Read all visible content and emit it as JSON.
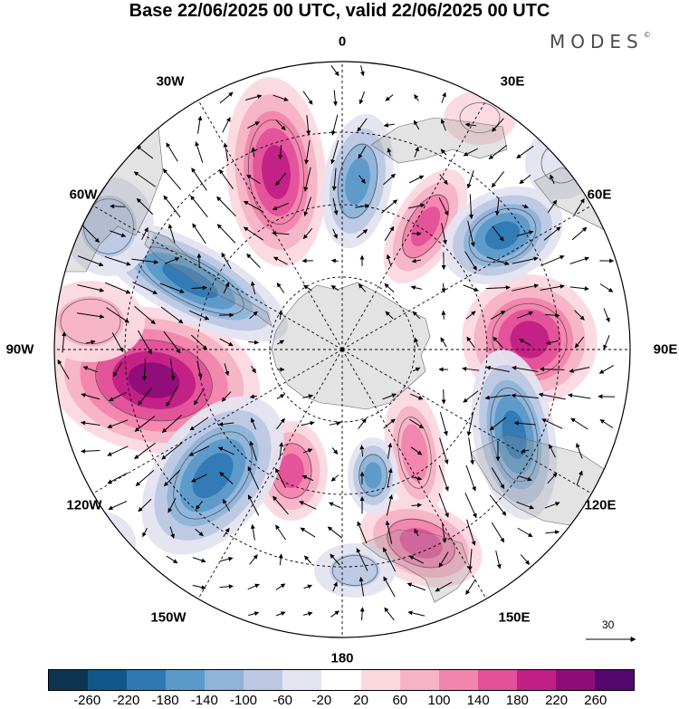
{
  "title": "Base 22/06/2025 00 UTC, valid 22/06/2025 00 UTC",
  "brand": {
    "name": "MODES",
    "mark": "©"
  },
  "longitude_labels": [
    "0",
    "30E",
    "60E",
    "90E",
    "120E",
    "150E",
    "180",
    "150W",
    "120W",
    "90W",
    "60W",
    "30W"
  ],
  "vector_scale": {
    "value": "30",
    "icon": "arrow-right-icon"
  },
  "colorbar": {
    "colors": [
      "#0d3552",
      "#12578a",
      "#2f79b4",
      "#5c9ac9",
      "#8fb3d9",
      "#bcc8e3",
      "#e4e4f1",
      "#ffffff",
      "#fbd9df",
      "#f7b3c6",
      "#f285ad",
      "#e2519a",
      "#c21f86",
      "#8e0d78",
      "#54086e"
    ],
    "ticks": [
      "-260",
      "-220",
      "-180",
      "-140",
      "-100",
      "-60",
      "-20",
      "20",
      "60",
      "100",
      "140",
      "180",
      "220",
      "260"
    ]
  }
}
